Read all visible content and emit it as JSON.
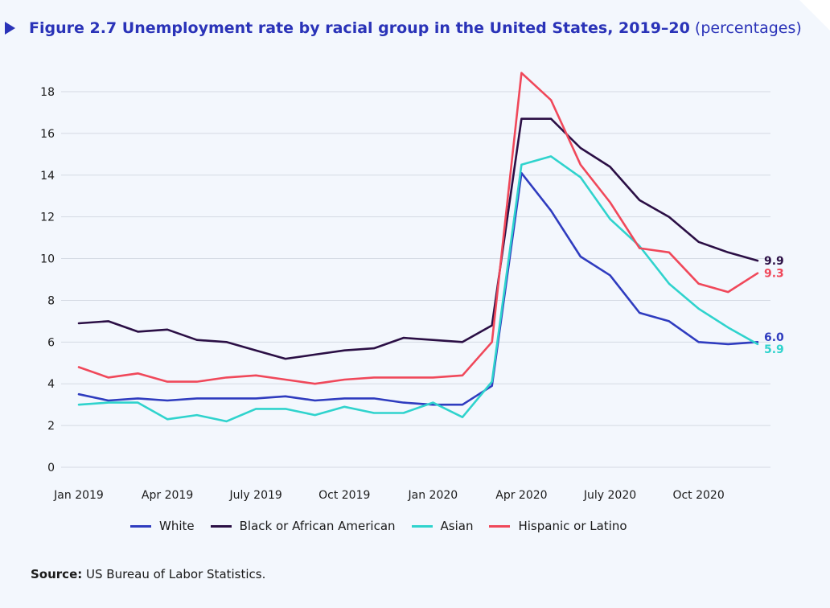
{
  "title": {
    "main": "Figure 2.7  Unemployment rate by racial group in the United States, 2019–20",
    "sub": "(percentages)"
  },
  "source": {
    "label": "Source:",
    "text": "US Bureau of Labor Statistics."
  },
  "colors": {
    "background": "#f3f7fd",
    "title": "#2a33b8",
    "white": "#2f3cbf",
    "black_or_african_american": "#2b0f45",
    "asian": "#2fd3cd",
    "hispanic_or_latino": "#f0485a",
    "grid": "#d4dae3"
  },
  "chart_data": {
    "type": "line",
    "x": [
      "Jan 2019",
      "Feb 2019",
      "Mar 2019",
      "Apr 2019",
      "May 2019",
      "Jun 2019",
      "Jul 2019",
      "Aug 2019",
      "Sep 2019",
      "Oct 2019",
      "Nov 2019",
      "Dec 2019",
      "Jan 2020",
      "Feb 2020",
      "Mar 2020",
      "Apr 2020",
      "May 2020",
      "Jun 2020",
      "Jul 2020",
      "Aug 2020",
      "Sep 2020",
      "Oct 2020",
      "Nov 2020",
      "Dec 2020"
    ],
    "x_tick_labels": [
      {
        "index": 0,
        "label": "Jan 2019"
      },
      {
        "index": 3,
        "label": "Apr 2019"
      },
      {
        "index": 6,
        "label": "July 2019"
      },
      {
        "index": 9,
        "label": "Oct 2019"
      },
      {
        "index": 12,
        "label": "Jan 2020"
      },
      {
        "index": 15,
        "label": "Apr 2020"
      },
      {
        "index": 18,
        "label": "July 2020"
      },
      {
        "index": 21,
        "label": "Oct 2020"
      }
    ],
    "ylim": [
      0,
      18
    ],
    "y_ticks": [
      0,
      2,
      4,
      6,
      8,
      10,
      12,
      14,
      16,
      18
    ],
    "grid": true,
    "legend_position": "bottom",
    "series": [
      {
        "name": "White",
        "color_key": "white",
        "values": [
          3.5,
          3.2,
          3.3,
          3.2,
          3.3,
          3.3,
          3.3,
          3.4,
          3.2,
          3.3,
          3.3,
          3.1,
          3.0,
          3.0,
          3.9,
          14.1,
          12.3,
          10.1,
          9.2,
          7.4,
          7.0,
          6.0,
          5.9,
          6.0
        ],
        "end_label": "6.0"
      },
      {
        "name": "Black or African American",
        "color_key": "black_or_african_american",
        "values": [
          6.9,
          7.0,
          6.5,
          6.6,
          6.1,
          6.0,
          5.6,
          5.2,
          5.4,
          5.6,
          5.7,
          6.2,
          6.1,
          6.0,
          6.8,
          16.7,
          16.7,
          15.3,
          14.4,
          12.8,
          12.0,
          10.8,
          10.3,
          9.9
        ],
        "end_label": "9.9"
      },
      {
        "name": "Asian",
        "color_key": "asian",
        "values": [
          3.0,
          3.1,
          3.1,
          2.3,
          2.5,
          2.2,
          2.8,
          2.8,
          2.5,
          2.9,
          2.6,
          2.6,
          3.1,
          2.4,
          4.1,
          14.5,
          14.9,
          13.9,
          11.9,
          10.6,
          8.8,
          7.6,
          6.7,
          5.9
        ],
        "end_label": "5.9"
      },
      {
        "name": "Hispanic or Latino",
        "color_key": "hispanic_or_latino",
        "values": [
          4.8,
          4.3,
          4.5,
          4.1,
          4.1,
          4.3,
          4.4,
          4.2,
          4.0,
          4.2,
          4.3,
          4.3,
          4.3,
          4.4,
          6.0,
          18.9,
          17.6,
          14.5,
          12.7,
          10.5,
          10.3,
          8.8,
          8.4,
          9.3
        ],
        "end_label": "9.3"
      }
    ]
  }
}
